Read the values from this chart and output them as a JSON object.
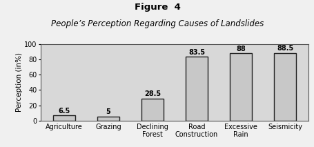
{
  "title": "Figure  4",
  "subtitle": "People’s Perception Regarding Causes of Landslides",
  "categories": [
    "Agriculture",
    "Grazing",
    "Declining\nForest",
    "Road\nConstruction",
    "Excessive\nRain",
    "Seismicity"
  ],
  "values": [
    6.5,
    5,
    28.5,
    83.5,
    88,
    88.5
  ],
  "bar_color": "#c8c8c8",
  "bar_edge_color": "#222222",
  "ylabel": "Perception (in%)",
  "ylim": [
    0,
    100
  ],
  "yticks": [
    0,
    20,
    40,
    60,
    80,
    100
  ],
  "fig_bg_color": "#f0f0f0",
  "plot_bg_color": "#d8d8d8",
  "title_fontsize": 9.5,
  "subtitle_fontsize": 8.5,
  "label_fontsize": 7.5,
  "value_fontsize": 7,
  "tick_fontsize": 7
}
